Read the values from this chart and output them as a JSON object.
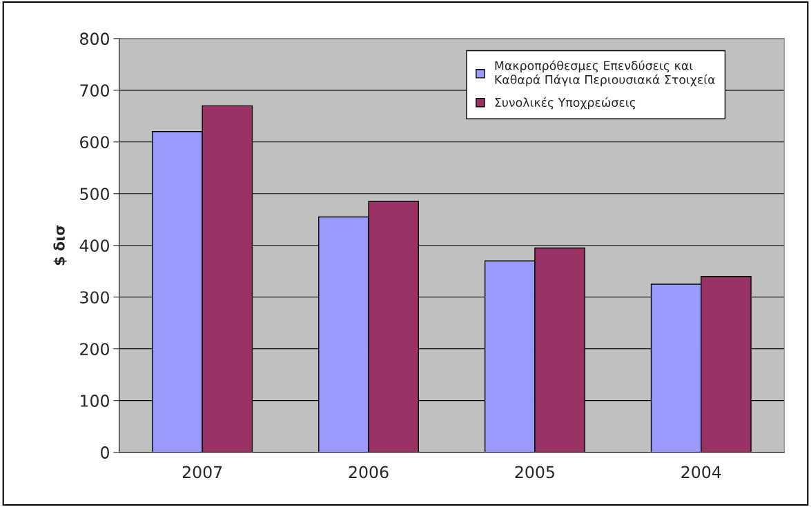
{
  "chart_data": {
    "type": "bar",
    "ylabel": "$ δισ",
    "categories": [
      "2007",
      "2006",
      "2005",
      "2004"
    ],
    "series": [
      {
        "name": "Μακροπρόθεσμες Επενδύσεις και\nΚαθαρά Πάγια Περιουσιακά Στοιχεία",
        "color": "#9999ff",
        "values": [
          620,
          455,
          370,
          325
        ]
      },
      {
        "name": "Συνολικές Υποχρεώσεις",
        "color": "#993366",
        "values": [
          670,
          485,
          395,
          340
        ]
      }
    ],
    "ylim": [
      0,
      800
    ],
    "yticks": [
      0,
      100,
      200,
      300,
      400,
      500,
      600,
      700,
      800
    ],
    "grid": "y",
    "legend": "top right"
  }
}
